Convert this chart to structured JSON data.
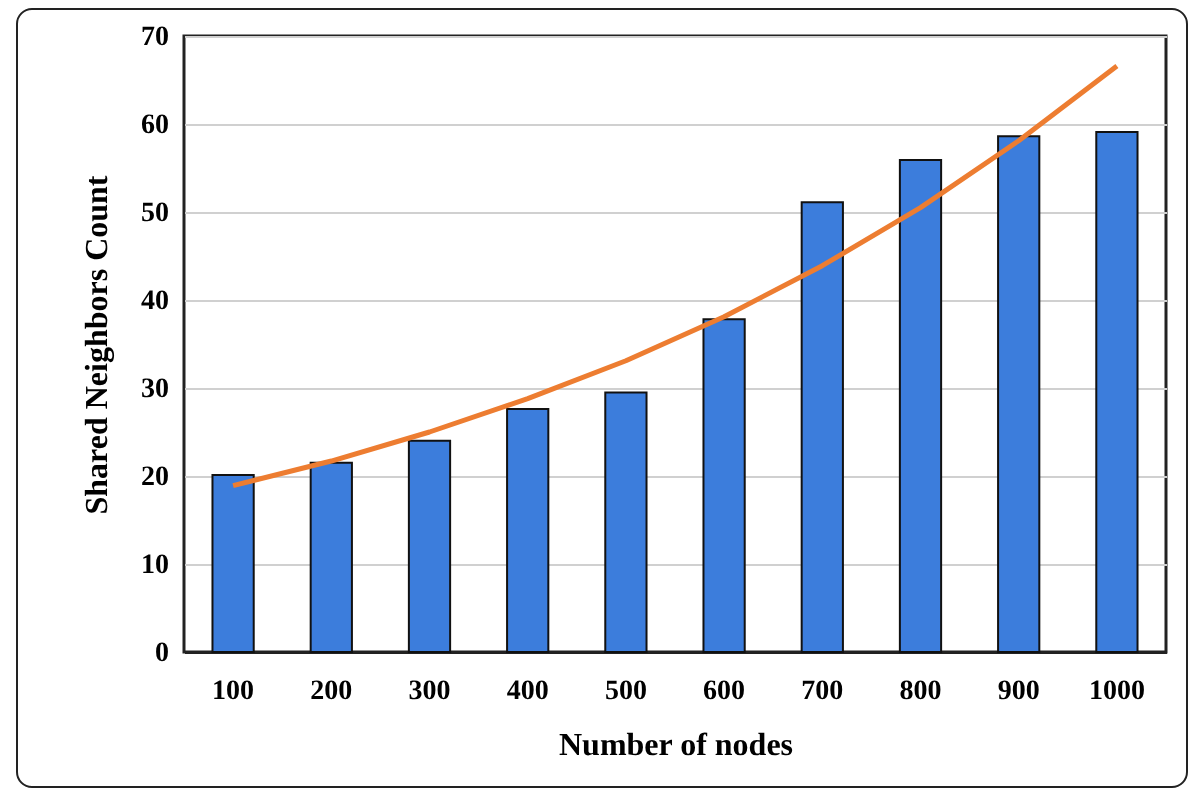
{
  "chart_data": {
    "type": "bar",
    "xlabel": "Number  of nodes",
    "ylabel": "Shared Neighbors  Count",
    "categories": [
      "100",
      "200",
      "300",
      "400",
      "500",
      "600",
      "700",
      "800",
      "900",
      "1000"
    ],
    "series": [
      {
        "color": "#3c7ddc",
        "values": [
          20.1,
          21.5,
          24.0,
          27.6,
          29.5,
          37.8,
          51.1,
          55.9,
          58.6,
          59.1
        ]
      },
      {
        "type": "line",
        "color": "#ed7d31",
        "values": [
          18.9,
          21.7,
          25.0,
          28.8,
          33.1,
          38.1,
          43.9,
          50.5,
          58.1,
          66.6
        ]
      }
    ],
    "ylim": [
      0,
      70
    ],
    "yticks": [
      0,
      10,
      20,
      30,
      40,
      50,
      60,
      70
    ],
    "grid": "y",
    "marker": "none",
    "line_style": "solid"
  }
}
